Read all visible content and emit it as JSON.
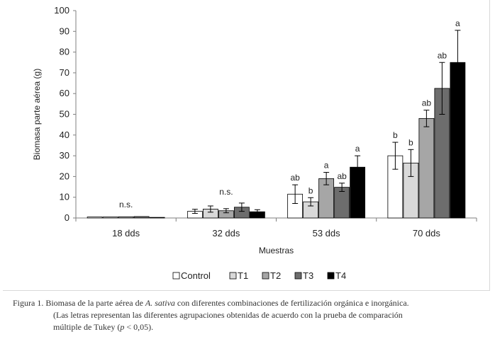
{
  "chart_data": {
    "type": "bar",
    "categories": [
      "18 dds",
      "32 dds",
      "53 dds",
      "70 dds"
    ],
    "xlabel": "Muestras",
    "ylabel": "Biomasa parte aérea (g)",
    "ylim": [
      0,
      100
    ],
    "yticks": [
      0,
      10,
      20,
      30,
      40,
      50,
      60,
      70,
      80,
      90,
      100
    ],
    "legend_position": "bottom",
    "grid": false,
    "series": [
      {
        "name": "Control",
        "color": "#ffffff",
        "values": [
          0.5,
          3.2,
          11.5,
          30.0
        ],
        "errors": [
          0.3,
          1.0,
          4.5,
          6.5
        ],
        "labels": [
          "",
          "",
          "ab",
          "b"
        ]
      },
      {
        "name": "T1",
        "color": "#d9d9d9",
        "values": [
          0.5,
          4.3,
          7.8,
          26.5
        ],
        "errors": [
          0.3,
          1.5,
          2.0,
          6.5
        ],
        "labels": [
          "",
          "",
          "b",
          "b"
        ]
      },
      {
        "name": "T2",
        "color": "#a6a6a6",
        "values": [
          0.6,
          3.5,
          19.0,
          48.0
        ],
        "errors": [
          0.3,
          1.0,
          3.0,
          4.0
        ],
        "labels": [
          "",
          "",
          "a",
          "ab"
        ]
      },
      {
        "name": "T3",
        "color": "#6d6d6d",
        "values": [
          0.7,
          5.2,
          14.8,
          62.5
        ],
        "errors": [
          0.3,
          2.0,
          2.0,
          12.5
        ],
        "labels": [
          "",
          "",
          "ab",
          "ab"
        ]
      },
      {
        "name": "T4",
        "color": "#000000",
        "values": [
          0.3,
          3.0,
          24.5,
          75.0
        ],
        "errors": [
          0.2,
          1.0,
          5.5,
          15.5
        ],
        "labels": [
          "",
          "",
          "a",
          "a"
        ]
      }
    ],
    "group_labels": [
      "n.s.",
      "n.s.",
      "",
      ""
    ]
  },
  "caption": {
    "prefix": "Figura 1. Biomasa de la parte aérea de ",
    "species": "A. sativa",
    "text1": " con diferentes combinaciones de fertilización orgánica e inorgánica.",
    "line2": "(Las letras representan las diferentes agrupaciones obtenidas de acuerdo con la prueba de comparación",
    "line3a": "múltiple de Tukey (",
    "p_symbol": "p",
    "line3b": " <  0,05)."
  }
}
